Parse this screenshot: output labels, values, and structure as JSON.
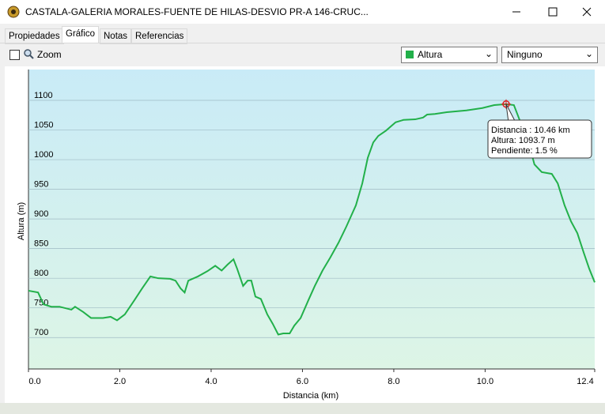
{
  "window": {
    "title": "CASTALA-GALERIA MORALES-FUENTE DE HILAS-DESVIO PR-A 146-CRUC..."
  },
  "tabs": [
    "Propiedades",
    "Gráfico",
    "Notas",
    "Referencias"
  ],
  "toolbar": {
    "zoom": "Zoom",
    "dropdown1": "Altura",
    "dropdown2": "Ninguno"
  },
  "chart_data": {
    "type": "line",
    "xlabel": "Distancia  (km)",
    "ylabel": "Altura (m)",
    "color": "#22b04a",
    "xlim": [
      0,
      12.4
    ],
    "ylim": [
      647,
      1152
    ],
    "xticks": [
      {
        "value": 0,
        "label": "0.0"
      },
      {
        "value": 2,
        "label": "2.0"
      },
      {
        "value": 4,
        "label": "4.0"
      },
      {
        "value": 6,
        "label": "6.0"
      },
      {
        "value": 8,
        "label": "8.0"
      },
      {
        "value": 10,
        "label": "10.0"
      },
      {
        "value": 12.4,
        "label": "12.4"
      }
    ],
    "yticks": [
      700,
      750,
      800,
      850,
      900,
      950,
      1000,
      1050,
      1100
    ],
    "grid": true,
    "x": [
      0,
      0.21,
      0.33,
      0.5,
      0.68,
      0.94,
      1.02,
      1.2,
      1.37,
      1.63,
      1.8,
      1.94,
      2.11,
      2.32,
      2.49,
      2.67,
      2.84,
      3.1,
      3.22,
      3.33,
      3.42,
      3.5,
      3.71,
      3.92,
      4.09,
      4.23,
      4.36,
      4.49,
      4.57,
      4.7,
      4.8,
      4.88,
      4.97,
      5.09,
      5.23,
      5.35,
      5.47,
      5.58,
      5.72,
      5.82,
      5.96,
      6.13,
      6.27,
      6.44,
      6.61,
      6.79,
      6.96,
      7.17,
      7.31,
      7.43,
      7.55,
      7.66,
      7.83,
      8.04,
      8.21,
      8.47,
      8.64,
      8.73,
      8.9,
      9.16,
      9.59,
      9.94,
      10.2,
      10.46,
      10.63,
      10.81,
      10.95,
      11.08,
      11.24,
      11.46,
      11.59,
      11.74,
      11.88,
      12.02,
      12.16,
      12.28,
      12.4
    ],
    "values": [
      779,
      776,
      756,
      752,
      752,
      747,
      752,
      743,
      733,
      733,
      735,
      729,
      739,
      763,
      783,
      803,
      800,
      799,
      796,
      783,
      776,
      796,
      803,
      812,
      821,
      813,
      823,
      832,
      816,
      787,
      796,
      796,
      769,
      765,
      739,
      723,
      705,
      707,
      707,
      720,
      733,
      763,
      787,
      813,
      835,
      860,
      887,
      923,
      960,
      1003,
      1029,
      1040,
      1049,
      1063,
      1067,
      1068,
      1071,
      1076,
      1077,
      1080,
      1083,
      1087,
      1092,
      1093.7,
      1092,
      1056,
      1029,
      992,
      979,
      976,
      960,
      923,
      896,
      876,
      843,
      816,
      793
    ],
    "annotation": {
      "x": 10.46,
      "y": 1093.7,
      "lines": [
        "Distancia  : 10.46 km",
        "Altura: 1093.7 m",
        "Pendiente: 1.5 %"
      ]
    }
  }
}
